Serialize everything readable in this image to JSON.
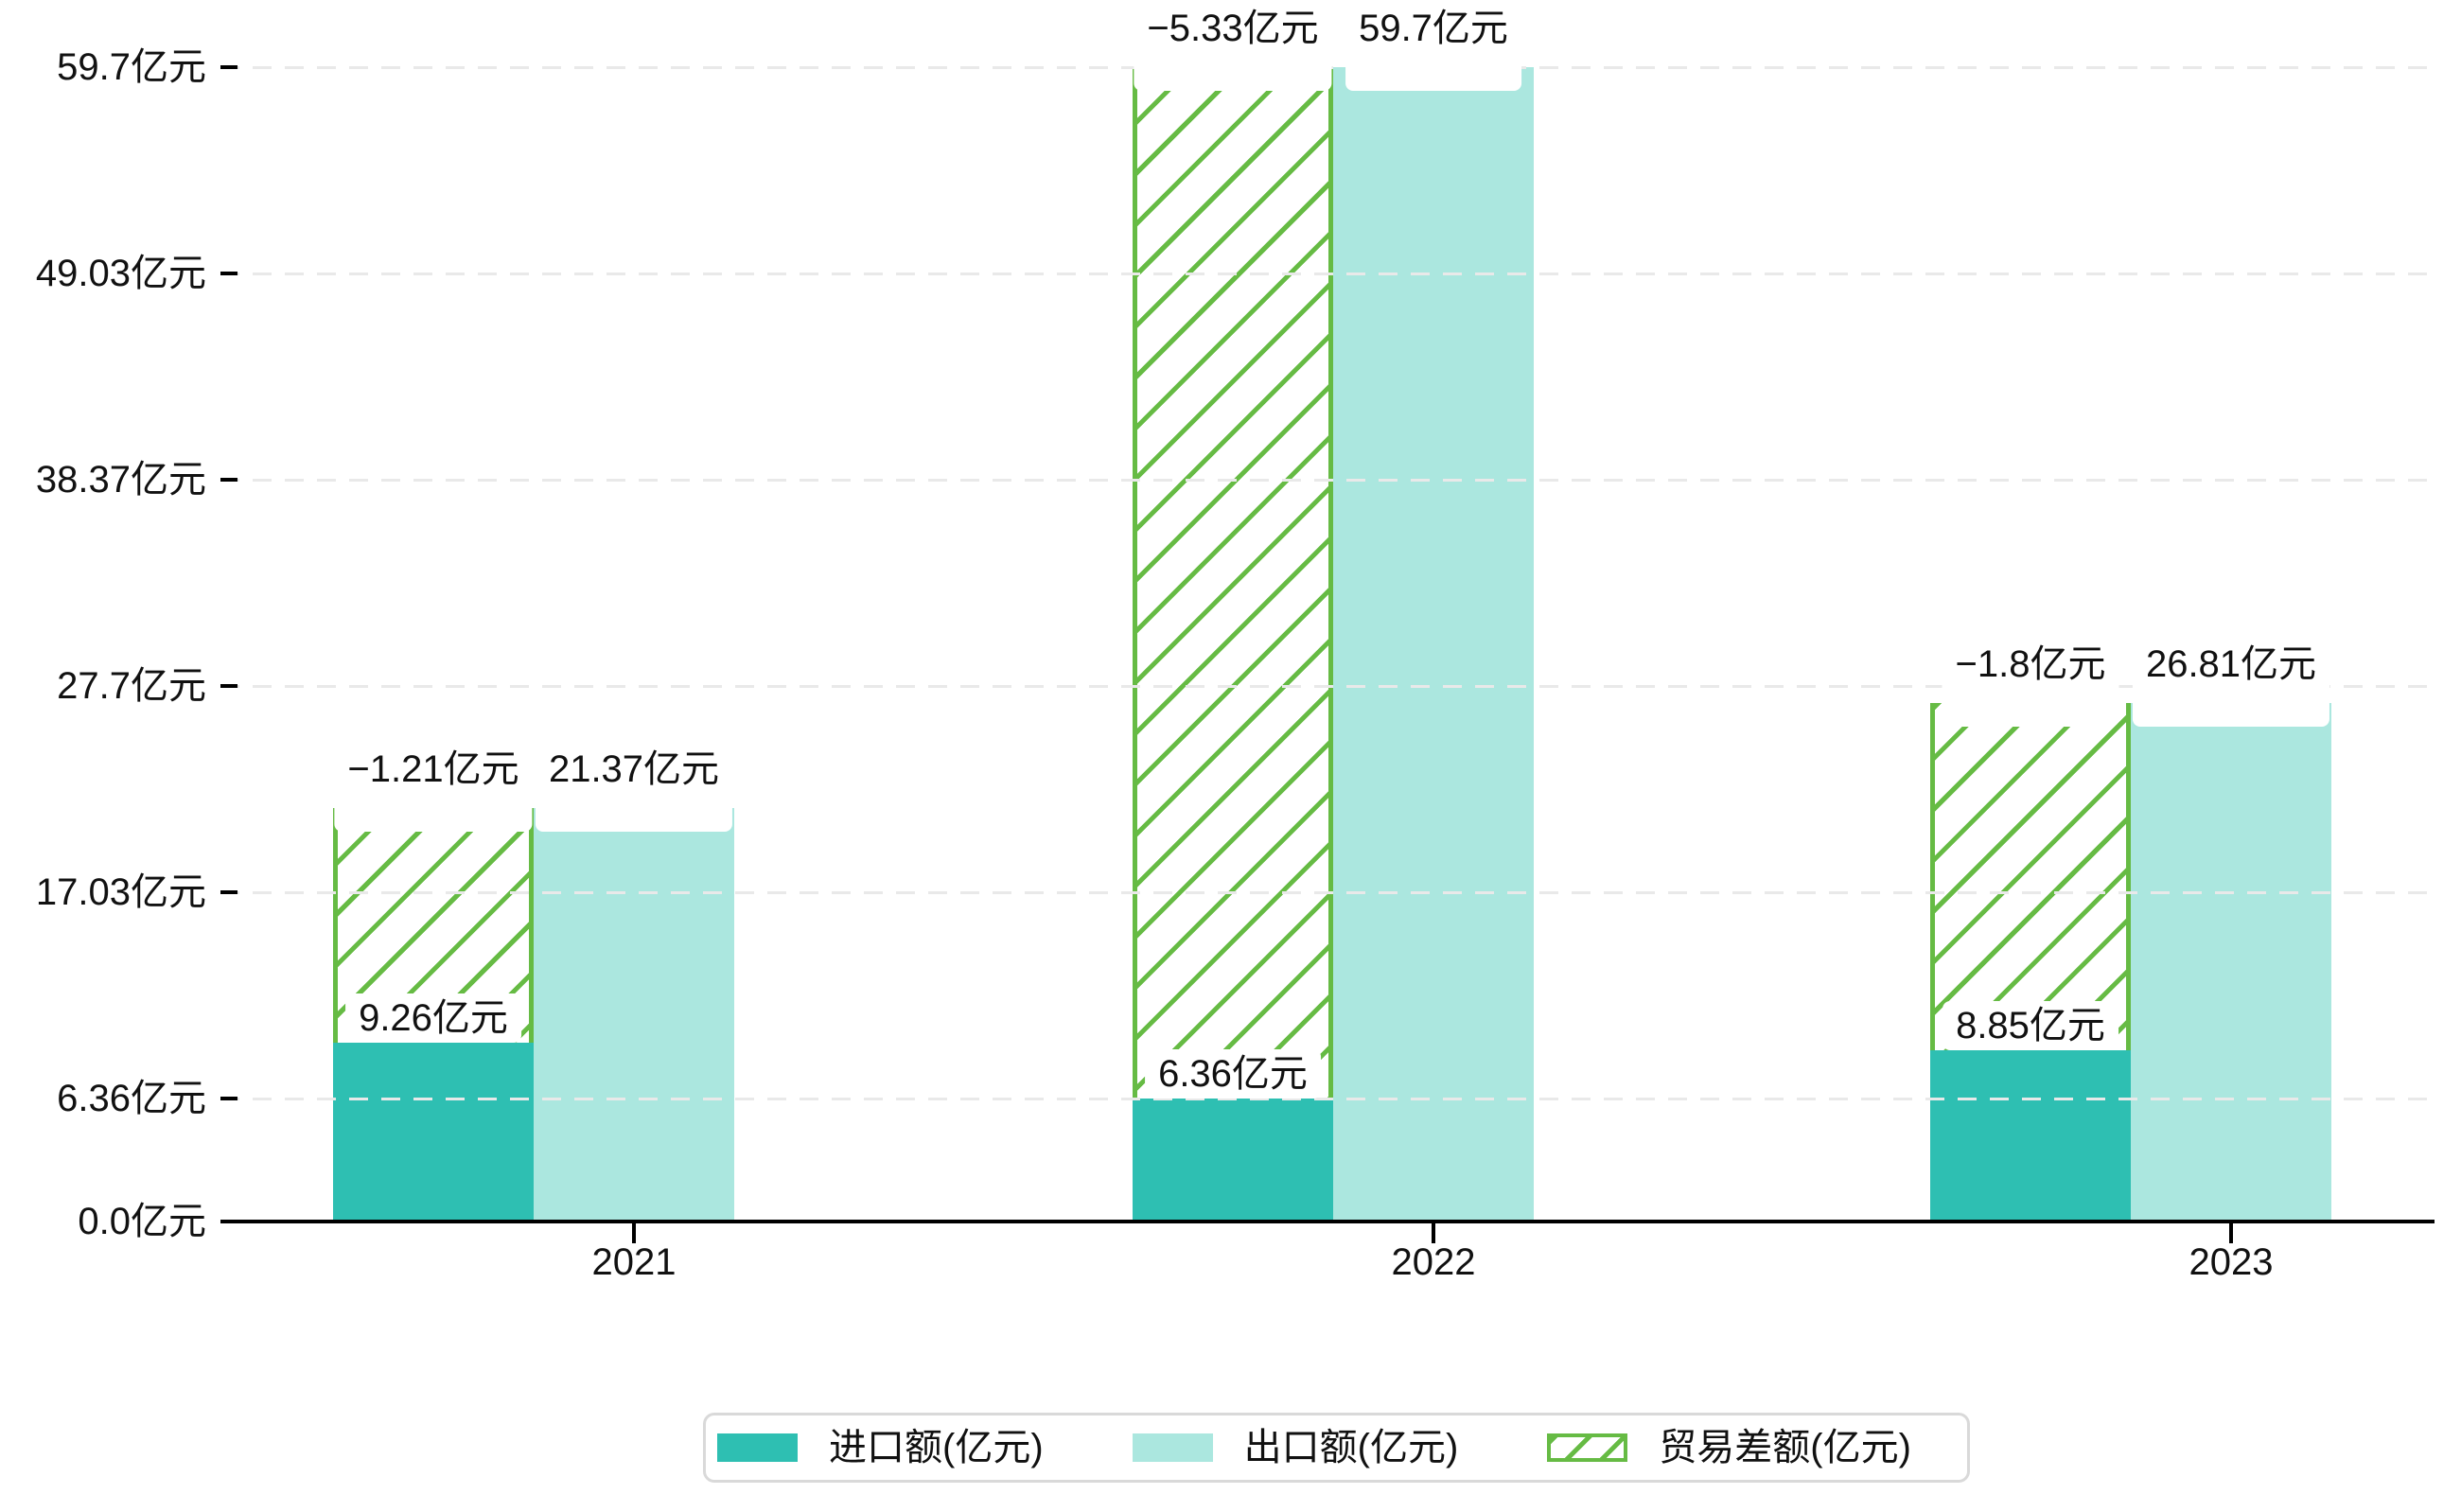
{
  "chart_data": {
    "type": "bar",
    "title": "",
    "xlabel": "",
    "ylabel": "",
    "categories": [
      "2021",
      "2022",
      "2023"
    ],
    "series": [
      {
        "name": "进口额(亿元)",
        "values": [
          9.26,
          6.36,
          8.85
        ],
        "data_labels": [
          "9.26亿元",
          "6.36亿元",
          "8.85亿元"
        ],
        "color": "#2EBFB2",
        "style": "solid"
      },
      {
        "name": "出口额(亿元)",
        "values": [
          21.37,
          59.7,
          26.81
        ],
        "data_labels": [
          "21.37亿元",
          "59.7亿元",
          "26.81亿元"
        ],
        "color": "#ABE7DF",
        "style": "solid"
      },
      {
        "name": "贸易差额(亿元)",
        "values": [
          -1.21,
          -5.33,
          -1.8
        ],
        "data_labels": [
          "−1.21亿元",
          "−5.33亿元",
          "−1.8亿元"
        ],
        "color": "#66BB44",
        "style": "hatched",
        "render_note": "hatched band drawn over the import column, spanning from import bar top to export bar top"
      }
    ],
    "y_axis": {
      "tick_values": [
        0.0,
        6.36,
        17.03,
        27.7,
        38.37,
        49.03,
        59.7
      ],
      "tick_labels": [
        "0.0亿元",
        "6.36亿元",
        "17.03亿元",
        "27.7亿元",
        "38.37亿元",
        "49.03亿元",
        "59.7亿元"
      ]
    },
    "ylim": [
      0,
      61
    ],
    "grid": "horizontal dashed",
    "legend_position": "bottom-center"
  },
  "colors": {
    "import_bar": "#2EBFB2",
    "export_bar": "#ABE7DF",
    "diff_green": "#66BB44",
    "gridline": "#E9E9E9",
    "axis": "#000000",
    "text": "#111111",
    "legend_border": "#D9D9D9",
    "label_bg": "#FFFFFF"
  }
}
